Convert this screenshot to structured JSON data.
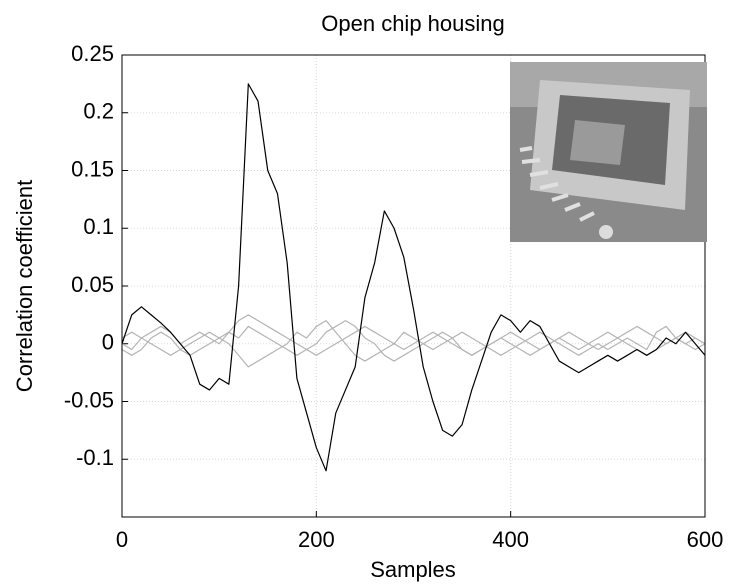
{
  "chart_data": {
    "type": "line",
    "title": "Open chip housing",
    "x_label": "Samples",
    "y_label": "Correlation coefficient",
    "x": [
      0,
      10,
      20,
      30,
      40,
      50,
      60,
      70,
      80,
      90,
      100,
      110,
      120,
      130,
      140,
      150,
      160,
      170,
      180,
      190,
      200,
      210,
      220,
      230,
      240,
      250,
      260,
      270,
      280,
      290,
      300,
      310,
      320,
      330,
      340,
      350,
      360,
      370,
      380,
      390,
      400,
      410,
      420,
      430,
      440,
      450,
      460,
      470,
      480,
      490,
      500,
      510,
      520,
      530,
      540,
      550,
      560,
      570,
      580,
      590,
      600
    ],
    "series": [
      {
        "color": "#b4b4b4",
        "values": [
          0.005,
          0.01,
          0.005,
          0,
          -0.005,
          -0.01,
          -0.005,
          0,
          0.005,
          0.01,
          0.005,
          0.01,
          0.02,
          0.025,
          0.02,
          0.015,
          0.01,
          0.005,
          0,
          -0.005,
          -0.01,
          -0.005,
          0,
          0.005,
          0.01,
          0.015,
          0.01,
          0.005,
          0,
          -0.005,
          0,
          0.005,
          0.01,
          0.005,
          0,
          -0.005,
          -0.01,
          -0.005,
          0,
          0.005,
          0.01,
          0.005,
          0,
          -0.005,
          0,
          0.005,
          0,
          -0.005,
          0,
          0.005,
          0.01,
          0.005,
          0.01,
          0.015,
          0.01,
          0.005,
          0,
          0.005,
          0,
          -0.005,
          0
        ]
      },
      {
        "color": "#b4b4b4",
        "values": [
          -0.005,
          -0.01,
          -0.005,
          0.005,
          0.01,
          0.005,
          -0.005,
          -0.01,
          -0.005,
          0,
          0.005,
          0,
          -0.01,
          -0.02,
          -0.015,
          -0.01,
          -0.005,
          0,
          0.01,
          0.005,
          0.015,
          0.02,
          0.01,
          0,
          -0.01,
          -0.015,
          -0.01,
          -0.005,
          0,
          0.01,
          0.005,
          0,
          -0.005,
          0,
          0.005,
          0.01,
          0.005,
          0,
          -0.005,
          -0.01,
          -0.005,
          0,
          0.005,
          0.01,
          0.005,
          0,
          -0.005,
          -0.01,
          -0.005,
          0,
          -0.005,
          0,
          0.005,
          0,
          -0.005,
          0.01,
          0.015,
          0.005,
          0,
          0.005,
          0
        ]
      },
      {
        "color": "#b4b4b4",
        "values": [
          0,
          -0.005,
          0.005,
          0.01,
          0.015,
          0.01,
          0,
          0.005,
          0.01,
          0.005,
          0,
          0.01,
          0.005,
          0.015,
          0.01,
          0.005,
          0,
          -0.005,
          -0.01,
          -0.005,
          0,
          0.01,
          0.015,
          0.02,
          0.015,
          0.005,
          0,
          -0.01,
          -0.015,
          -0.01,
          -0.005,
          0,
          0.005,
          0.01,
          0.005,
          -0.005,
          -0.01,
          -0.005,
          0,
          0.005,
          0,
          -0.005,
          -0.01,
          -0.005,
          0,
          0.005,
          0.01,
          0.005,
          0,
          -0.005,
          0,
          0.005,
          0,
          -0.005,
          -0.01,
          -0.005,
          0,
          0.005,
          0.01,
          0.005,
          0
        ]
      },
      {
        "color": "#000000",
        "values": [
          0,
          0.025,
          0.032,
          0.025,
          0.018,
          0.01,
          0,
          -0.01,
          -0.035,
          -0.04,
          -0.03,
          -0.035,
          0.05,
          0.225,
          0.21,
          0.15,
          0.13,
          0.07,
          -0.03,
          -0.06,
          -0.09,
          -0.11,
          -0.06,
          -0.04,
          -0.02,
          0.04,
          0.07,
          0.115,
          0.1,
          0.075,
          0.03,
          -0.02,
          -0.05,
          -0.075,
          -0.08,
          -0.07,
          -0.04,
          -0.015,
          0.01,
          0.025,
          0.02,
          0.01,
          0.02,
          0.015,
          0,
          -0.015,
          -0.02,
          -0.025,
          -0.02,
          -0.015,
          -0.01,
          -0.015,
          -0.01,
          -0.005,
          -0.01,
          -0.005,
          0.005,
          0,
          0.01,
          0,
          -0.01
        ]
      }
    ],
    "xlim": [
      0,
      600
    ],
    "xticks": [
      0,
      200,
      400,
      600
    ],
    "ylim": [
      -0.15,
      0.25
    ],
    "yticks": [
      -0.1,
      -0.05,
      0,
      0.05,
      0.1,
      0.15,
      0.2,
      0.25
    ],
    "grid": true
  }
}
